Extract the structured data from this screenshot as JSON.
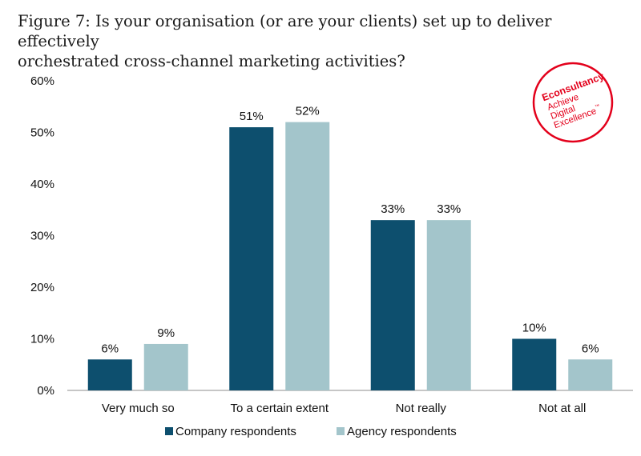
{
  "title": {
    "line1": "Figure 7: Is your organisation (or are your clients) set up to deliver effectively",
    "line2": "orchestrated cross-channel marketing activities?"
  },
  "logo": {
    "brand": "Econsultancy",
    "line1": "Achieve",
    "line2": "Digital",
    "line3": "Excellence",
    "tm": "™",
    "color": "#e3001b"
  },
  "chart_data": {
    "type": "bar",
    "categories": [
      "Very much so",
      "To a certain extent",
      "Not really",
      "Not at all"
    ],
    "series": [
      {
        "name": "Company respondents",
        "values": [
          6,
          51,
          33,
          10
        ],
        "color": "#0d4f6e"
      },
      {
        "name": "Agency respondents",
        "values": [
          9,
          52,
          33,
          6
        ],
        "color": "#a3c5cb"
      }
    ],
    "data_labels": [
      [
        "6%",
        "51%",
        "33%",
        "10%"
      ],
      [
        "9%",
        "52%",
        "33%",
        "6%"
      ]
    ],
    "y_ticks": [
      "0%",
      "10%",
      "20%",
      "30%",
      "40%",
      "50%",
      "60%"
    ],
    "ylim": [
      0,
      60
    ],
    "grid": false,
    "legend_position": "bottom",
    "xlabel": "",
    "ylabel": ""
  }
}
